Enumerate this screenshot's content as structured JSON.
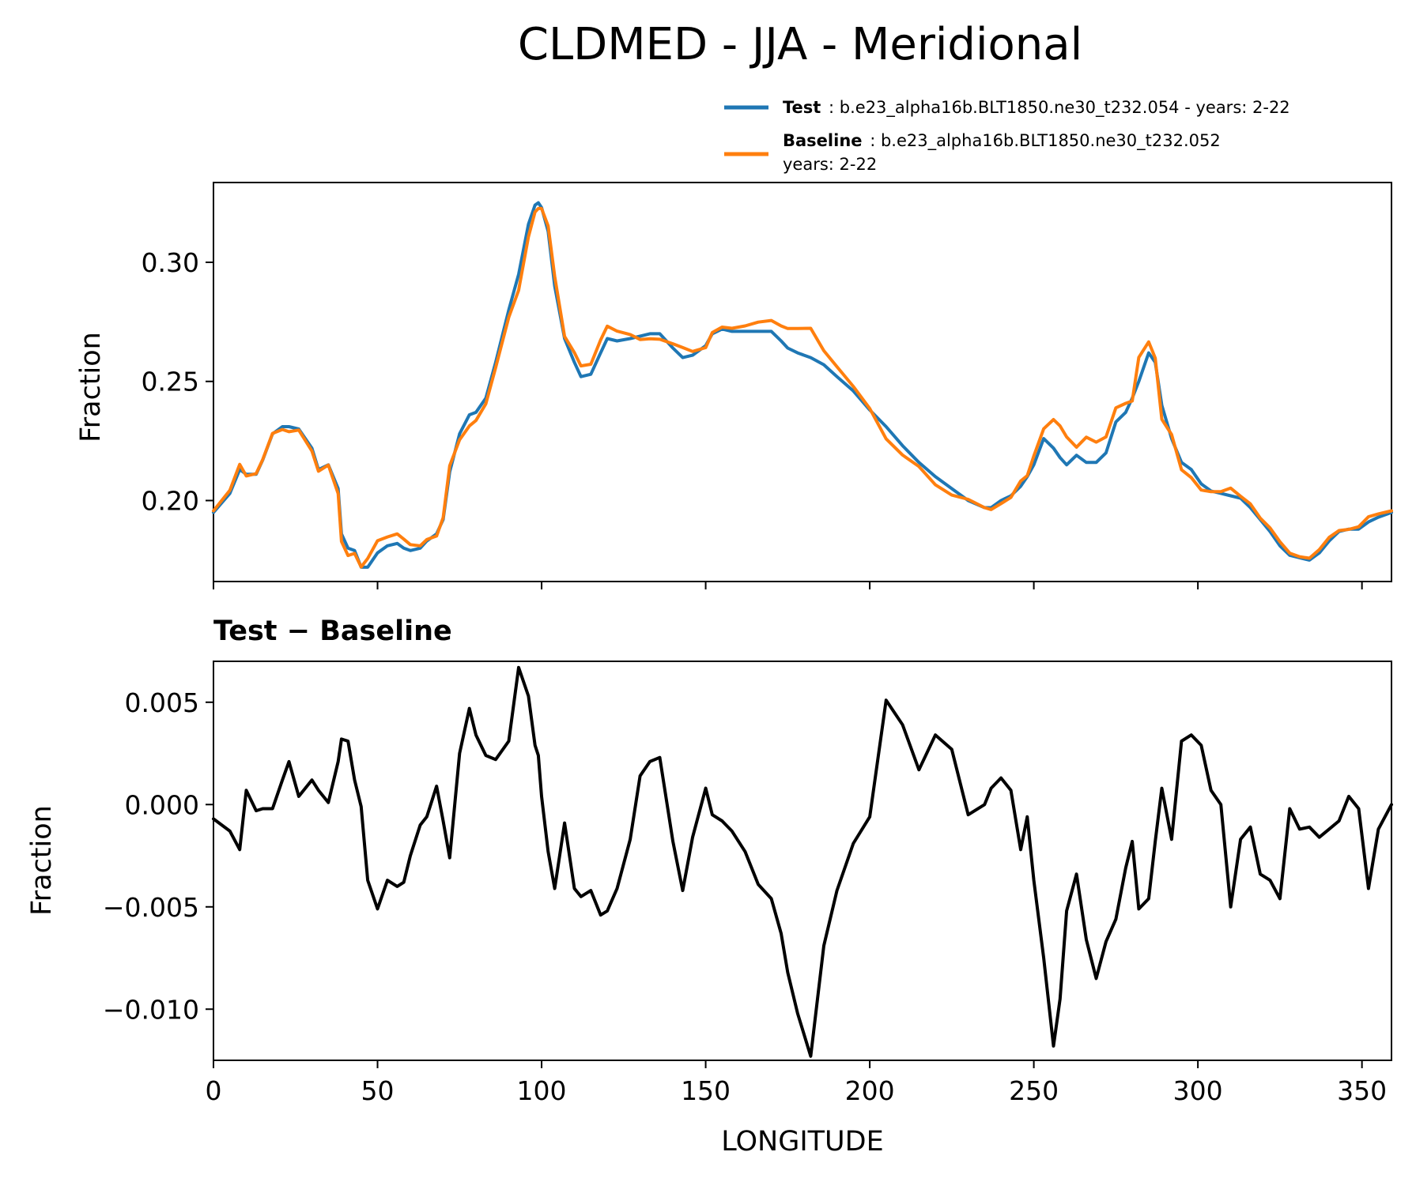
{
  "chart_data": [
    {
      "type": "line",
      "title": "CLDMED - JJA - Meridional",
      "xlabel": "",
      "ylabel": "Fraction",
      "xlim": [
        0,
        359
      ],
      "ylim": [
        0.166,
        0.3335
      ],
      "xticks": [
        0,
        50,
        100,
        150,
        200,
        250,
        300,
        350
      ],
      "yticks": [
        0.2,
        0.25,
        0.3
      ],
      "ytick_labels": [
        "0.20",
        "0.25",
        "0.30"
      ],
      "legend": {
        "position": "upper-right-outside",
        "entries": [
          {
            "name": "Test",
            "desc": ": b.e23_alpha16b.BLT1850.ne30_t232.054 - years: 2-22",
            "desc2": ""
          },
          {
            "name": "Baseline",
            "desc": ": b.e23_alpha16b.BLT1850.ne30_t232.052",
            "desc2": "years: 2-22"
          }
        ]
      },
      "series": [
        {
          "name": "Test",
          "color": "#1f77b4",
          "x": [
            0,
            5,
            8,
            10,
            13,
            15,
            18,
            21,
            23,
            26,
            30,
            32,
            35,
            38,
            39,
            41,
            43,
            45,
            47,
            50,
            53,
            56,
            58,
            60,
            63,
            65,
            68,
            70,
            72,
            75,
            78,
            80,
            83,
            86,
            90,
            93,
            96,
            98,
            99,
            100,
            102,
            104,
            107,
            110,
            112,
            115,
            118,
            120,
            123,
            127,
            130,
            133,
            136,
            140,
            143,
            146,
            150,
            152,
            155,
            158,
            162,
            166,
            170,
            173,
            175,
            178,
            182,
            186,
            190,
            195,
            200,
            205,
            210,
            215,
            220,
            225,
            230,
            235,
            237,
            240,
            243,
            246,
            248,
            250,
            253,
            256,
            258,
            260,
            263,
            266,
            269,
            272,
            275,
            278,
            280,
            282,
            285,
            287,
            289,
            292,
            295,
            298,
            301,
            304,
            307,
            310,
            313,
            316,
            319,
            322,
            325,
            328,
            331,
            334,
            337,
            340,
            343,
            346,
            349,
            352,
            355,
            359
          ],
          "values": [
            0.195,
            0.203,
            0.213,
            0.211,
            0.211,
            0.217,
            0.228,
            0.231,
            0.231,
            0.23,
            0.222,
            0.213,
            0.215,
            0.205,
            0.186,
            0.18,
            0.179,
            0.172,
            0.172,
            0.178,
            0.181,
            0.182,
            0.18,
            0.179,
            0.18,
            0.183,
            0.186,
            0.192,
            0.212,
            0.228,
            0.236,
            0.237,
            0.243,
            0.258,
            0.28,
            0.295,
            0.316,
            0.324,
            0.325,
            0.323,
            0.313,
            0.29,
            0.268,
            0.258,
            0.252,
            0.253,
            0.262,
            0.268,
            0.267,
            0.268,
            0.269,
            0.27,
            0.27,
            0.264,
            0.26,
            0.261,
            0.265,
            0.27,
            0.272,
            0.271,
            0.271,
            0.271,
            0.271,
            0.267,
            0.264,
            0.262,
            0.26,
            0.257,
            0.252,
            0.246,
            0.238,
            0.231,
            0.223,
            0.216,
            0.21,
            0.205,
            0.2,
            0.197,
            0.197,
            0.2,
            0.202,
            0.206,
            0.21,
            0.215,
            0.226,
            0.222,
            0.218,
            0.215,
            0.219,
            0.216,
            0.216,
            0.22,
            0.233,
            0.237,
            0.243,
            0.25,
            0.262,
            0.258,
            0.24,
            0.226,
            0.216,
            0.213,
            0.207,
            0.204,
            0.203,
            0.202,
            0.201,
            0.197,
            0.192,
            0.187,
            0.181,
            0.177,
            0.176,
            0.175,
            0.178,
            0.183,
            0.187,
            0.188,
            0.188,
            0.191,
            0.193,
            0.195
          ]
        },
        {
          "name": "Baseline",
          "color": "#ff7f0e",
          "x": [
            0,
            5,
            8,
            10,
            13,
            15,
            18,
            21,
            23,
            26,
            30,
            32,
            35,
            38,
            39,
            41,
            43,
            45,
            47,
            50,
            53,
            56,
            58,
            60,
            63,
            65,
            68,
            70,
            72,
            75,
            78,
            80,
            83,
            86,
            90,
            93,
            96,
            98,
            99,
            100,
            102,
            104,
            107,
            110,
            112,
            115,
            118,
            120,
            123,
            127,
            130,
            133,
            136,
            140,
            143,
            146,
            150,
            152,
            155,
            158,
            162,
            166,
            170,
            173,
            175,
            178,
            182,
            186,
            190,
            195,
            200,
            205,
            210,
            215,
            220,
            225,
            230,
            235,
            237,
            240,
            243,
            246,
            248,
            250,
            253,
            256,
            258,
            260,
            263,
            266,
            269,
            272,
            275,
            278,
            280,
            282,
            285,
            287,
            289,
            292,
            295,
            298,
            301,
            304,
            307,
            310,
            313,
            316,
            319,
            322,
            325,
            328,
            331,
            334,
            337,
            340,
            343,
            346,
            349,
            352,
            355,
            359
          ],
          "values": [
            0.1957,
            0.2043,
            0.2152,
            0.2103,
            0.2113,
            0.2172,
            0.2282,
            0.2298,
            0.2289,
            0.2296,
            0.2208,
            0.2123,
            0.2149,
            0.2029,
            0.1828,
            0.1769,
            0.1778,
            0.1721,
            0.1757,
            0.1831,
            0.1847,
            0.186,
            0.1838,
            0.1815,
            0.181,
            0.1836,
            0.1851,
            0.1928,
            0.2146,
            0.2255,
            0.2313,
            0.2336,
            0.2406,
            0.2558,
            0.2769,
            0.2883,
            0.3107,
            0.3211,
            0.3226,
            0.3226,
            0.3153,
            0.2941,
            0.2689,
            0.2621,
            0.2565,
            0.2572,
            0.2674,
            0.2732,
            0.2711,
            0.2697,
            0.2676,
            0.2679,
            0.2677,
            0.2658,
            0.2642,
            0.2626,
            0.2642,
            0.2705,
            0.2728,
            0.2723,
            0.2733,
            0.2749,
            0.2756,
            0.2733,
            0.2722,
            0.2722,
            0.2723,
            0.2629,
            0.2562,
            0.2479,
            0.2386,
            0.2259,
            0.2191,
            0.2143,
            0.2066,
            0.2023,
            0.2005,
            0.197,
            0.1962,
            0.1987,
            0.2013,
            0.2082,
            0.2104,
            0.2187,
            0.2301,
            0.234,
            0.2313,
            0.2267,
            0.2224,
            0.2266,
            0.2245,
            0.2267,
            0.2389,
            0.2408,
            0.2418,
            0.2601,
            0.2666,
            0.2598,
            0.2341,
            0.2277,
            0.2129,
            0.2096,
            0.2044,
            0.2037,
            0.2037,
            0.2052,
            0.2018,
            0.1986,
            0.1926,
            0.1885,
            0.1827,
            0.1779,
            0.1764,
            0.1758,
            0.1794,
            0.1845,
            0.1874,
            0.1879,
            0.189,
            0.1932,
            0.1944,
            0.1957
          ]
        }
      ]
    },
    {
      "type": "line",
      "title": "Test − Baseline",
      "xlabel": "LONGITUDE",
      "ylabel": "Fraction",
      "xlim": [
        0,
        359
      ],
      "ylim": [
        -0.0125,
        0.007
      ],
      "xticks": [
        0,
        50,
        100,
        150,
        200,
        250,
        300,
        350
      ],
      "xtick_labels": [
        "0",
        "50",
        "100",
        "150",
        "200",
        "250",
        "300",
        "350"
      ],
      "yticks": [
        -0.01,
        -0.005,
        0.0,
        0.005
      ],
      "ytick_labels": [
        "−0.010",
        "−0.005",
        "0.000",
        "0.005"
      ],
      "series": [
        {
          "name": "Test − Baseline",
          "color": "#000000",
          "x": [
            0,
            5,
            8,
            10,
            13,
            15,
            18,
            21,
            23,
            26,
            30,
            32,
            35,
            38,
            39,
            41,
            43,
            45,
            47,
            50,
            53,
            56,
            58,
            60,
            63,
            65,
            68,
            70,
            72,
            75,
            78,
            80,
            83,
            86,
            90,
            93,
            96,
            98,
            99,
            100,
            102,
            104,
            107,
            110,
            112,
            115,
            118,
            120,
            123,
            127,
            130,
            133,
            136,
            140,
            143,
            146,
            150,
            152,
            155,
            158,
            162,
            166,
            170,
            173,
            175,
            178,
            182,
            186,
            190,
            195,
            200,
            205,
            210,
            215,
            220,
            225,
            230,
            235,
            237,
            240,
            243,
            246,
            248,
            250,
            253,
            256,
            258,
            260,
            263,
            266,
            269,
            272,
            275,
            278,
            280,
            282,
            285,
            287,
            289,
            292,
            295,
            298,
            301,
            304,
            307,
            310,
            313,
            316,
            319,
            322,
            325,
            328,
            331,
            334,
            337,
            340,
            343,
            346,
            349,
            352,
            355,
            359
          ],
          "values": [
            -0.0007,
            -0.0013,
            -0.0022,
            0.0007,
            -0.0003,
            -0.0002,
            -0.0002,
            0.0012,
            0.0021,
            0.0004,
            0.0012,
            0.0007,
            0.0001,
            0.0021,
            0.0032,
            0.0031,
            0.0012,
            -0.0001,
            -0.0037,
            -0.0051,
            -0.0037,
            -0.004,
            -0.0038,
            -0.0025,
            -0.001,
            -0.0006,
            0.0009,
            -0.0008,
            -0.0026,
            0.0025,
            0.0047,
            0.0034,
            0.0024,
            0.0022,
            0.0031,
            0.0067,
            0.0053,
            0.0029,
            0.0024,
            0.0004,
            -0.0023,
            -0.0041,
            -0.0009,
            -0.0041,
            -0.0045,
            -0.0042,
            -0.0054,
            -0.0052,
            -0.0041,
            -0.0017,
            0.0014,
            0.0021,
            0.0023,
            -0.0018,
            -0.0042,
            -0.0016,
            0.0008,
            -0.0005,
            -0.0008,
            -0.0013,
            -0.0023,
            -0.0039,
            -0.0046,
            -0.0063,
            -0.0082,
            -0.0102,
            -0.0123,
            -0.0069,
            -0.0042,
            -0.0019,
            -0.0006,
            0.0051,
            0.0039,
            0.0017,
            0.0034,
            0.0027,
            -0.0005,
            -0.0,
            0.0008,
            0.0013,
            0.0007,
            -0.0022,
            -0.0006,
            -0.0037,
            -0.0075,
            -0.0118,
            -0.0095,
            -0.0052,
            -0.0034,
            -0.0066,
            -0.0085,
            -0.0067,
            -0.0056,
            -0.0031,
            -0.0018,
            -0.0051,
            -0.0046,
            -0.0018,
            0.0008,
            -0.0017,
            0.0031,
            0.0034,
            0.0029,
            0.0007,
            0.0,
            -0.005,
            -0.0017,
            -0.0011,
            -0.0034,
            -0.0037,
            -0.0046,
            -0.0002,
            -0.0012,
            -0.0011,
            -0.0016,
            -0.0012,
            -0.0008,
            0.0004,
            -0.0002,
            -0.0041,
            -0.0012,
            0.0
          ]
        }
      ]
    }
  ]
}
